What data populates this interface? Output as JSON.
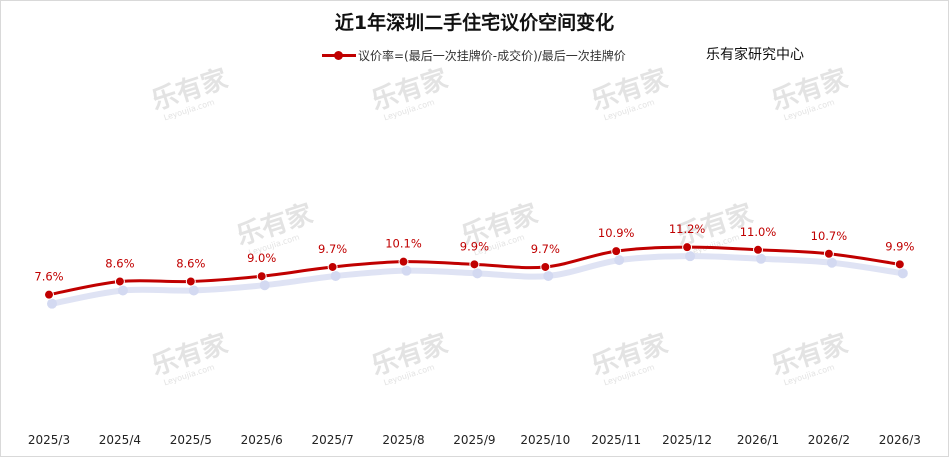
{
  "chart_data": {
    "type": "line",
    "title": "近1年深圳二手住宅议价空间变化",
    "xlabel": "",
    "ylabel": "",
    "categories": [
      "2025/3",
      "2025/4",
      "2025/5",
      "2025/6",
      "2025/7",
      "2025/8",
      "2025/9",
      "2025/10",
      "2025/11",
      "2025/12",
      "2026/1",
      "2026/2",
      "2026/3"
    ],
    "series": [
      {
        "name": "议价率=(最后一次挂牌价-成交价)/最后一次挂牌价",
        "values": [
          7.6,
          8.6,
          8.6,
          9.0,
          9.7,
          10.1,
          9.9,
          9.7,
          10.9,
          11.2,
          11.0,
          10.7,
          9.9
        ],
        "labels": [
          "7.6%",
          "8.6%",
          "8.6%",
          "9.0%",
          "9.7%",
          "10.1%",
          "9.9%",
          "9.7%",
          "10.9%",
          "11.2%",
          "11.0%",
          "10.7%",
          "9.9%"
        ],
        "color": "#c00000"
      }
    ],
    "ylim": [
      0,
      17
    ],
    "grid": false,
    "legend_position": "top-center"
  },
  "source_label": "乐有家研究中心",
  "watermark": {
    "text": "乐有家",
    "subtext": "Leyoujia.com"
  }
}
